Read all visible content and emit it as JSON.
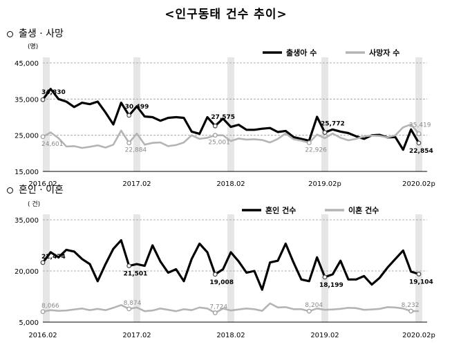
{
  "title": "<인구동태 건수 추이>",
  "sections": [
    {
      "label": "출생 · 사망"
    },
    {
      "label": "혼인 · 이혼"
    }
  ],
  "chart_data": [
    {
      "type": "line",
      "unit": "(명)",
      "ylim": [
        15000,
        45000
      ],
      "yticks": [
        "15,000",
        "25,000",
        "35,000",
        "45,000"
      ],
      "ytick_values": [
        15000,
        25000,
        35000,
        45000
      ],
      "xtick_labels": [
        "2016.02",
        "2017.02",
        "2018.02",
        "2019.02p",
        "2020.02p"
      ],
      "xtick_index": [
        0,
        12,
        24,
        36,
        48
      ],
      "grid": "dashed horizontal",
      "legend_position": "top-right",
      "highlight_colors": {
        "shade": "#e6e6e6"
      },
      "series": [
        {
          "name": "출생아 수",
          "color": "#000000",
          "values": [
            34830,
            37800,
            35000,
            34300,
            32800,
            34000,
            33600,
            34300,
            31300,
            28000,
            34000,
            30499,
            33000,
            30200,
            30000,
            29000,
            29800,
            30000,
            29800,
            26000,
            25400,
            30000,
            27575,
            29600,
            27300,
            27900,
            26500,
            26500,
            26800,
            27000,
            25900,
            26200,
            24500,
            24000,
            23500,
            30100,
            25772,
            26600,
            26000,
            25600,
            24700,
            24000,
            25000,
            25100,
            24400,
            24500,
            21000,
            26600,
            22854
          ]
        },
        {
          "name": "사망자 수",
          "color": "#b4b4b4",
          "values": [
            24601,
            25800,
            24200,
            21900,
            22000,
            21500,
            21800,
            22200,
            21600,
            22400,
            26300,
            22884,
            25500,
            22400,
            22900,
            23000,
            22000,
            22300,
            23000,
            25000,
            24000,
            24300,
            25001,
            25000,
            23400,
            24100,
            23800,
            23900,
            23700,
            23000,
            24000,
            25500,
            23900,
            23500,
            22926,
            25200,
            24200,
            25500,
            24300,
            23600,
            24000,
            24700,
            24900,
            24800,
            24400,
            25000,
            27200,
            28000,
            25419
          ]
        }
      ],
      "annotations": [
        {
          "series": 0,
          "index": 0,
          "text": "34,830"
        },
        {
          "series": 0,
          "index": 11,
          "text": "30,499"
        },
        {
          "series": 0,
          "index": 22,
          "text": "27,575"
        },
        {
          "series": 0,
          "index": 36,
          "text": "25,772"
        },
        {
          "series": 0,
          "index": 48,
          "text": "22,854"
        },
        {
          "series": 1,
          "index": 0,
          "text": "24,601"
        },
        {
          "series": 1,
          "index": 11,
          "text": "22,884"
        },
        {
          "series": 1,
          "index": 22,
          "text": "25,001"
        },
        {
          "series": 1,
          "index": 34,
          "text": "22,926"
        },
        {
          "series": 1,
          "index": 48,
          "text": "25,419"
        }
      ],
      "shaded_months": [
        0,
        12,
        24,
        36,
        48
      ]
    },
    {
      "type": "line",
      "unit": "( 건)",
      "ylim": [
        5000,
        35000
      ],
      "yticks": [
        "5,000",
        "20,000",
        "35,000"
      ],
      "ytick_values": [
        5000,
        20000,
        35000
      ],
      "xtick_labels": [
        "2016.02",
        "2017.02",
        "2018.02",
        "2019.02",
        "2020.02p"
      ],
      "xtick_index": [
        0,
        12,
        24,
        36,
        48
      ],
      "grid": "dashed horizontal",
      "legend_position": "top-right",
      "series": [
        {
          "name": "혼인 건수",
          "color": "#000000",
          "values": [
            22474,
            25500,
            24000,
            26200,
            25700,
            23500,
            22000,
            17000,
            22000,
            26500,
            29000,
            21501,
            22000,
            21500,
            27500,
            22800,
            19500,
            20500,
            17000,
            23500,
            28000,
            25500,
            19008,
            20500,
            25500,
            22800,
            19500,
            20000,
            14500,
            22500,
            23000,
            28000,
            22500,
            17500,
            17000,
            24000,
            18199,
            19000,
            23000,
            17500,
            17500,
            18500,
            16000,
            18000,
            21000,
            23500,
            26000,
            19800,
            19104
          ]
        },
        {
          "name": "이혼 건수",
          "color": "#b4b4b4",
          "values": [
            8066,
            8500,
            8300,
            8400,
            8700,
            9000,
            8500,
            8900,
            8500,
            9200,
            10000,
            8874,
            9300,
            8200,
            8400,
            9000,
            8600,
            8200,
            8800,
            8500,
            9300,
            9000,
            7724,
            9000,
            8400,
            8700,
            9000,
            8800,
            8300,
            10500,
            9300,
            9400,
            8800,
            8800,
            8204,
            9000,
            8600,
            8700,
            8900,
            9200,
            9100,
            8600,
            8700,
            8900,
            9400,
            9300,
            9000,
            8232,
            8232
          ]
        }
      ],
      "annotations": [
        {
          "series": 0,
          "index": 0,
          "text": "22,474"
        },
        {
          "series": 0,
          "index": 11,
          "text": "21,501"
        },
        {
          "series": 0,
          "index": 22,
          "text": "19,008"
        },
        {
          "series": 0,
          "index": 36,
          "text": "18,199"
        },
        {
          "series": 0,
          "index": 48,
          "text": "19,104"
        },
        {
          "series": 1,
          "index": 0,
          "text": "8,066"
        },
        {
          "series": 1,
          "index": 11,
          "text": "8,874"
        },
        {
          "series": 1,
          "index": 22,
          "text": "7,724"
        },
        {
          "series": 1,
          "index": 34,
          "text": "8,204"
        },
        {
          "series": 1,
          "index": 47,
          "text": "8,232"
        }
      ],
      "shaded_months": [
        0,
        12,
        24,
        36,
        48
      ]
    }
  ]
}
